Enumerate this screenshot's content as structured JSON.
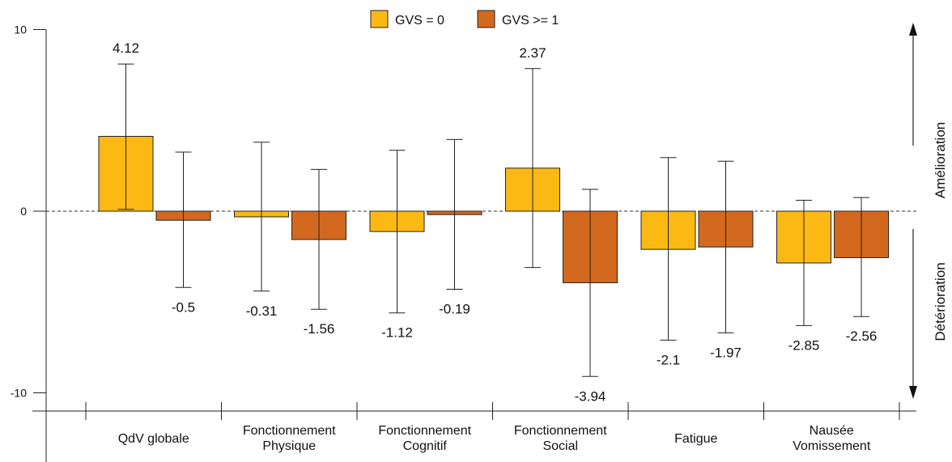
{
  "chart_data": {
    "type": "bar",
    "categories": [
      [
        "QdV globale"
      ],
      [
        "Fonctionnement",
        "Physique"
      ],
      [
        "Fonctionnement",
        "Cognitif"
      ],
      [
        "Fonctionnement",
        "Social"
      ],
      [
        "Fatigue"
      ],
      [
        "Nausée",
        "Vomissement"
      ]
    ],
    "series": [
      {
        "name": "GVS = 0",
        "color": "#FDB913",
        "values": [
          4.12,
          -0.31,
          -1.12,
          2.37,
          -2.1,
          -2.85
        ],
        "ci_low": [
          0.1,
          -4.4,
          -5.6,
          -3.1,
          -7.1,
          -6.3
        ],
        "ci_high": [
          8.1,
          3.8,
          3.35,
          7.85,
          2.95,
          0.6
        ]
      },
      {
        "name": "GVS >= 1",
        "color": "#D2691E",
        "values": [
          -0.5,
          -1.56,
          -0.19,
          -3.94,
          -1.97,
          -2.56
        ],
        "ci_low": [
          -4.2,
          -5.4,
          -4.3,
          -9.1,
          -6.7,
          -5.8
        ],
        "ci_high": [
          3.25,
          2.3,
          3.95,
          1.2,
          2.75,
          0.75
        ]
      }
    ],
    "value_labels": [
      [
        "4.12",
        "-0.31",
        "-1.12",
        "2.37",
        "-2.1",
        "-2.85"
      ],
      [
        "-0.5",
        "-1.56",
        "-0.19",
        "-3.94",
        "-1.97",
        "-2.56"
      ]
    ],
    "yticks": [
      -10,
      0,
      10
    ],
    "ylim": [
      -10.6,
      10.3
    ],
    "reference_line": 0,
    "legend_position": "top",
    "right_annotations": {
      "up": "Amélioration",
      "down": "Détérioration"
    }
  }
}
